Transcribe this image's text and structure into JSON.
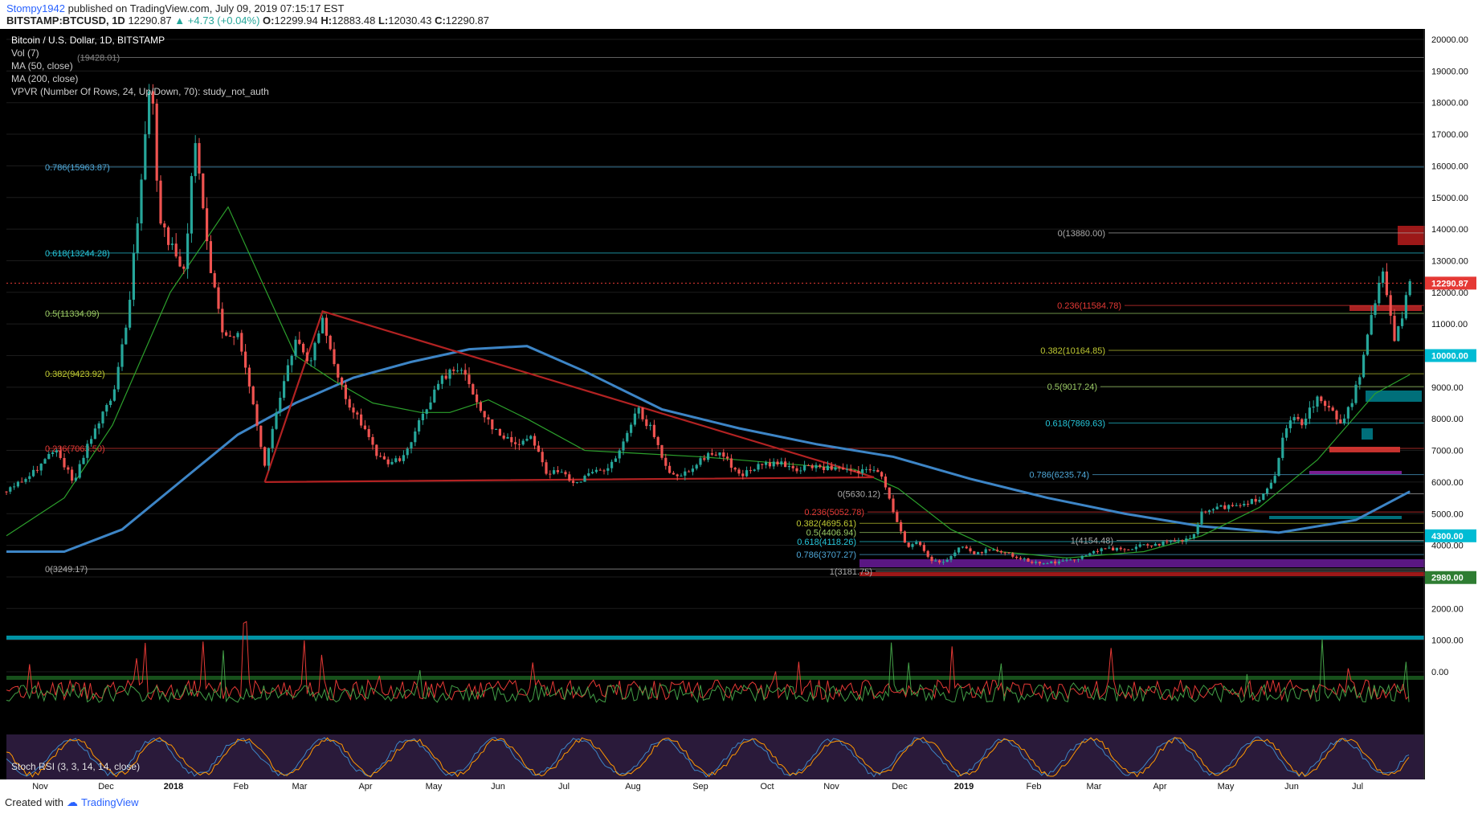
{
  "header": {
    "user": "Stompy1942",
    "published": "published on TradingView.com, July 09, 2019 07:15:17 EST",
    "symbol": "BITSTAMP:BTCUSD, 1D",
    "last": "12290.87",
    "change": "+4.73 (+0.04%)",
    "o_label": "O:",
    "o": "12299.94",
    "h_label": "H:",
    "h": "12883.48",
    "l_label": "L:",
    "l": "12030.43",
    "c_label": "C:",
    "c": "12290.87"
  },
  "indicators": [
    "Bitcoin / U.S. Dollar, 1D, BITSTAMP",
    "Vol (7)",
    "MA (50, close)",
    "MA (200, close)",
    "VPVR (Number Of Rows, 24, Up/Down, 70): study_not_auth"
  ],
  "stoch_label": "Stoch RSI (3, 3, 14, 14, close)",
  "footer": {
    "created": "Created with",
    "brand": "TradingView"
  },
  "colors": {
    "background": "#000000",
    "bull": "#26a69a",
    "bear": "#ef5350",
    "ma50": "#2ca02c",
    "ma200": "#3d85c6",
    "triangle": "#b22222",
    "price_line": "#e53935"
  },
  "chart_data": {
    "type": "candlestick",
    "symbol": "BTCUSD",
    "exchange": "BITSTAMP",
    "interval": "1D",
    "ylim": [
      0,
      20500
    ],
    "y_ticks": [
      "20000.00",
      "19000.00",
      "18000.00",
      "17000.00",
      "16000.00",
      "15000.00",
      "14000.00",
      "13000.00",
      "12000.00",
      "11000.00",
      "10000.00",
      "9000.00",
      "8000.00",
      "7000.00",
      "6000.00",
      "5000.00",
      "4000.00",
      "3000.00",
      "2000.00",
      "1000.00",
      "0.00"
    ],
    "x_ticks": [
      "Nov",
      "Dec",
      "2018",
      "Feb",
      "Mar",
      "Apr",
      "May",
      "Jun",
      "Jul",
      "Aug",
      "Sep",
      "Oct",
      "Nov",
      "Dec",
      "2019",
      "Feb",
      "Mar",
      "Apr",
      "May",
      "Jun",
      "Jul"
    ],
    "price_labels": [
      {
        "text": "12290.87",
        "value": 12290.87,
        "color": "#e53935"
      },
      {
        "text": "10000.00",
        "value": 10000,
        "color": "#00bcd4"
      },
      {
        "text": "4300.00",
        "value": 4300,
        "color": "#00bcd4"
      },
      {
        "text": "2980.00",
        "value": 2980,
        "color": "#2e7d32"
      }
    ],
    "fib_levels": [
      {
        "text": "(19428.01)",
        "value": 19428.01
      },
      {
        "text": "0.786(15963.87)",
        "value": 15963.87
      },
      {
        "text": "0.618(13244.28)",
        "value": 13244.28
      },
      {
        "text": "0.5(11334.09)",
        "value": 11334.09
      },
      {
        "text": "0.382(9423.92)",
        "value": 9423.92
      },
      {
        "text": "0.236(7063.50)",
        "value": 7063.5
      },
      {
        "text": "0(3249.17)",
        "value": 3249.17
      },
      {
        "text": "0(13880.00)",
        "value": 13880
      },
      {
        "text": "0.236(11584.78)",
        "value": 11584.78
      },
      {
        "text": "0.382(10164.85)",
        "value": 10164.85
      },
      {
        "text": "0.5(9017.24)",
        "value": 9017.24
      },
      {
        "text": "0.618(7869.63)",
        "value": 7869.63
      },
      {
        "text": "0.786(6235.74)",
        "value": 6235.74
      },
      {
        "text": "0(5630.12)",
        "value": 5630.12
      },
      {
        "text": "0.236(5052.78)",
        "value": 5052.78
      },
      {
        "text": "0.382(4695.61)",
        "value": 4695.61
      },
      {
        "text": "0.5(4406.94)",
        "value": 4406.94
      },
      {
        "text": "0.618(4118.26)",
        "value": 4118.26
      },
      {
        "text": "0.786(3707.27)",
        "value": 3707.27
      },
      {
        "text": "1(3181.75)",
        "value": 3181.75
      },
      {
        "text": "1(4154.48)",
        "value": 4154.48
      }
    ],
    "price_path": [
      [
        0,
        5700
      ],
      [
        25,
        6200
      ],
      [
        50,
        7000
      ],
      [
        70,
        6000
      ],
      [
        90,
        7600
      ],
      [
        110,
        8700
      ],
      [
        125,
        11000
      ],
      [
        140,
        15500
      ],
      [
        150,
        19200
      ],
      [
        158,
        14500
      ],
      [
        170,
        13500
      ],
      [
        185,
        12500
      ],
      [
        195,
        17000
      ],
      [
        210,
        13000
      ],
      [
        225,
        10500
      ],
      [
        240,
        10800
      ],
      [
        255,
        8500
      ],
      [
        268,
        6500
      ],
      [
        282,
        8500
      ],
      [
        300,
        10500
      ],
      [
        315,
        9600
      ],
      [
        328,
        11300
      ],
      [
        340,
        9600
      ],
      [
        355,
        8400
      ],
      [
        370,
        7800
      ],
      [
        385,
        6800
      ],
      [
        400,
        6600
      ],
      [
        415,
        6900
      ],
      [
        430,
        8000
      ],
      [
        450,
        9200
      ],
      [
        470,
        9700
      ],
      [
        490,
        8400
      ],
      [
        510,
        7500
      ],
      [
        530,
        7200
      ],
      [
        545,
        7500
      ],
      [
        560,
        6300
      ],
      [
        575,
        6300
      ],
      [
        590,
        6000
      ],
      [
        610,
        6300
      ],
      [
        625,
        6400
      ],
      [
        640,
        7200
      ],
      [
        655,
        8300
      ],
      [
        670,
        7600
      ],
      [
        685,
        6400
      ],
      [
        700,
        6200
      ],
      [
        720,
        6700
      ],
      [
        740,
        7000
      ],
      [
        760,
        6200
      ],
      [
        780,
        6500
      ],
      [
        800,
        6600
      ],
      [
        820,
        6400
      ],
      [
        840,
        6500
      ],
      [
        860,
        6400
      ],
      [
        880,
        6300
      ],
      [
        905,
        6400
      ],
      [
        915,
        5500
      ],
      [
        925,
        4700
      ],
      [
        935,
        3900
      ],
      [
        945,
        4100
      ],
      [
        960,
        3500
      ],
      [
        975,
        3500
      ],
      [
        990,
        4000
      ],
      [
        1005,
        3700
      ],
      [
        1020,
        3900
      ],
      [
        1040,
        3700
      ],
      [
        1060,
        3500
      ],
      [
        1080,
        3450
      ],
      [
        1100,
        3500
      ],
      [
        1120,
        3700
      ],
      [
        1140,
        3900
      ],
      [
        1160,
        3850
      ],
      [
        1180,
        4000
      ],
      [
        1210,
        4100
      ],
      [
        1230,
        4200
      ],
      [
        1240,
        5000
      ],
      [
        1260,
        5200
      ],
      [
        1280,
        5300
      ],
      [
        1300,
        5500
      ],
      [
        1315,
        6000
      ],
      [
        1325,
        7500
      ],
      [
        1335,
        8000
      ],
      [
        1345,
        7900
      ],
      [
        1360,
        8700
      ],
      [
        1375,
        8200
      ],
      [
        1385,
        7900
      ],
      [
        1395,
        8500
      ],
      [
        1405,
        9500
      ],
      [
        1415,
        11000
      ],
      [
        1428,
        12800
      ],
      [
        1433,
        11800
      ],
      [
        1440,
        10600
      ],
      [
        1448,
        11200
      ],
      [
        1456,
        12290
      ]
    ],
    "ma50_path": [
      [
        0,
        4300
      ],
      [
        60,
        5500
      ],
      [
        110,
        7800
      ],
      [
        170,
        12000
      ],
      [
        230,
        14700
      ],
      [
        270,
        12000
      ],
      [
        300,
        10000
      ],
      [
        340,
        9200
      ],
      [
        380,
        8500
      ],
      [
        430,
        8200
      ],
      [
        460,
        8200
      ],
      [
        500,
        8600
      ],
      [
        540,
        8000
      ],
      [
        600,
        7000
      ],
      [
        660,
        6900
      ],
      [
        720,
        6800
      ],
      [
        800,
        6600
      ],
      [
        880,
        6400
      ],
      [
        925,
        5800
      ],
      [
        980,
        4500
      ],
      [
        1030,
        3800
      ],
      [
        1100,
        3600
      ],
      [
        1180,
        3800
      ],
      [
        1240,
        4300
      ],
      [
        1300,
        5200
      ],
      [
        1360,
        6700
      ],
      [
        1420,
        8800
      ],
      [
        1456,
        9400
      ]
    ],
    "ma200_path": [
      [
        0,
        3800
      ],
      [
        60,
        3800
      ],
      [
        120,
        4500
      ],
      [
        180,
        6000
      ],
      [
        240,
        7500
      ],
      [
        300,
        8500
      ],
      [
        360,
        9300
      ],
      [
        420,
        9800
      ],
      [
        480,
        10200
      ],
      [
        540,
        10300
      ],
      [
        600,
        9500
      ],
      [
        680,
        8300
      ],
      [
        760,
        7700
      ],
      [
        840,
        7200
      ],
      [
        920,
        6800
      ],
      [
        1000,
        6100
      ],
      [
        1080,
        5500
      ],
      [
        1160,
        5000
      ],
      [
        1240,
        4600
      ],
      [
        1320,
        4400
      ],
      [
        1400,
        4800
      ],
      [
        1456,
        5700
      ]
    ]
  }
}
